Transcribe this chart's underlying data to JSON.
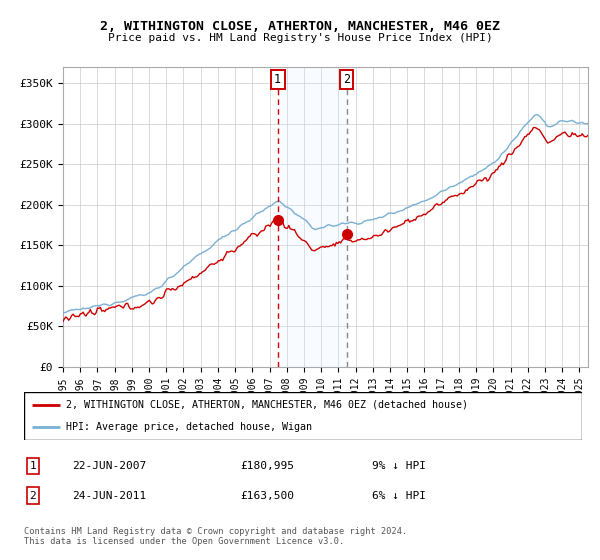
{
  "title1": "2, WITHINGTON CLOSE, ATHERTON, MANCHESTER, M46 0EZ",
  "title2": "Price paid vs. HM Land Registry's House Price Index (HPI)",
  "ylabel_ticks": [
    "£0",
    "£50K",
    "£100K",
    "£150K",
    "£200K",
    "£250K",
    "£300K",
    "£350K"
  ],
  "ytick_values": [
    0,
    50000,
    100000,
    150000,
    200000,
    250000,
    300000,
    350000
  ],
  "ylim": [
    0,
    370000
  ],
  "xlim_start": 1995.0,
  "xlim_end": 2025.5,
  "sale1_x": 2007.47,
  "sale1_y": 180995,
  "sale2_x": 2011.47,
  "sale2_y": 163500,
  "sale1_label": "22-JUN-2007",
  "sale1_price": "£180,995",
  "sale1_hpi": "9% ↓ HPI",
  "sale2_label": "24-JUN-2011",
  "sale2_price": "£163,500",
  "sale2_hpi": "6% ↓ HPI",
  "legend_line1": "2, WITHINGTON CLOSE, ATHERTON, MANCHESTER, M46 0EZ (detached house)",
  "legend_line2": "HPI: Average price, detached house, Wigan",
  "footer": "Contains HM Land Registry data © Crown copyright and database right 2024.\nThis data is licensed under the Open Government Licence v3.0.",
  "hpi_color": "#7ab0d4",
  "sale_color": "#cc0000",
  "shade_color": "#ddeeff",
  "vline1_color": "#cc0000",
  "vline2_color": "#888888",
  "background_color": "#ffffff",
  "grid_color": "#cccccc"
}
